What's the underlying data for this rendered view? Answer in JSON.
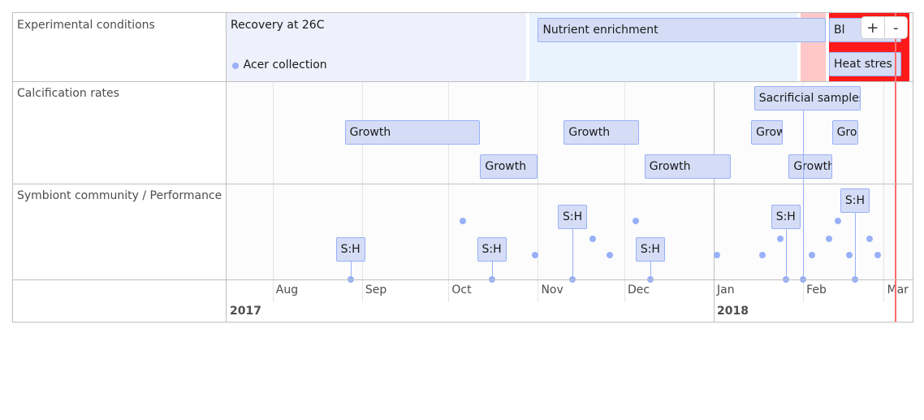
{
  "groups": [
    {
      "label": "Experimental conditions"
    },
    {
      "label": "Calcification rates"
    },
    {
      "label": "Symbiont community / Performance"
    }
  ],
  "backgrounds": [
    {
      "name": "recovery-period",
      "label": "Recovery at 26C",
      "start": "2017-07-16",
      "end": "2017-10-28",
      "color": "#eef0fb"
    },
    {
      "name": "nutrient-period",
      "start": "2017-10-29",
      "end": "2018-01-30",
      "color": "#e9f3fd"
    },
    {
      "name": "pre-stress-period",
      "start": "2018-01-31",
      "end": "2018-02-09",
      "color": "#ffc8c8"
    },
    {
      "name": "bleaching-period",
      "start": "2018-02-10",
      "end": "2018-03-10",
      "color": "#ff1a1a"
    }
  ],
  "items": [
    {
      "name": "acer-collection",
      "group": 0,
      "type": "point",
      "label": "Acer collection",
      "date": "2017-07-19",
      "row": 1
    },
    {
      "name": "nutrient-enrichment",
      "group": 0,
      "type": "range",
      "label": "Nutrient enrichment",
      "start": "2017-11-01",
      "end": "2018-02-09",
      "row": 0
    },
    {
      "name": "bleaching",
      "group": 0,
      "type": "range",
      "label": "Bleaching",
      "start": "2018-02-10",
      "end": "2018-03-07",
      "row": 0,
      "visible_label": "Bl"
    },
    {
      "name": "heat-stress",
      "group": 0,
      "type": "range",
      "label": "Heat stress",
      "start": "2018-02-10",
      "end": "2018-03-07",
      "row": 1,
      "visible_label": "Heat stres"
    },
    {
      "name": "sacrificial-samples",
      "group": 1,
      "type": "range",
      "label": "Sacrificial samples",
      "start": "2018-01-15",
      "end": "2018-02-21",
      "row": 0
    },
    {
      "name": "growth-1",
      "group": 1,
      "type": "range",
      "label": "Growth",
      "start": "2017-08-26",
      "end": "2017-10-12",
      "row": 1
    },
    {
      "name": "growth-2",
      "group": 1,
      "type": "range",
      "label": "Growth",
      "start": "2017-10-12",
      "end": "2017-11-01",
      "row": 2
    },
    {
      "name": "growth-3",
      "group": 1,
      "type": "range",
      "label": "Growth",
      "start": "2017-11-10",
      "end": "2017-12-06",
      "row": 1
    },
    {
      "name": "growth-4",
      "group": 1,
      "type": "range",
      "label": "Growth",
      "start": "2017-12-08",
      "end": "2018-01-07",
      "row": 2
    },
    {
      "name": "growth-5",
      "group": 1,
      "type": "range",
      "label": "Growth",
      "start": "2018-01-14",
      "end": "2018-01-25",
      "row": 1,
      "visible_label": "Grow"
    },
    {
      "name": "growth-6",
      "group": 1,
      "type": "range",
      "label": "Growth",
      "start": "2018-01-27",
      "end": "2018-02-11",
      "row": 2
    },
    {
      "name": "growth-7",
      "group": 1,
      "type": "range",
      "label": "Growth",
      "start": "2018-02-11",
      "end": "2018-02-20",
      "row": 1,
      "visible_label": "Gro"
    },
    {
      "name": "sh-sample-1",
      "group": 2,
      "type": "box",
      "label": "S:H",
      "date": "2017-08-28",
      "level": 0
    },
    {
      "name": "sh-sample-2",
      "group": 2,
      "type": "box",
      "label": "S:H",
      "date": "2017-10-16",
      "level": 0
    },
    {
      "name": "sh-sample-3",
      "group": 2,
      "type": "box",
      "label": "S:H",
      "date": "2017-11-13",
      "level": 1
    },
    {
      "name": "sh-sample-4",
      "group": 2,
      "type": "box",
      "label": "S:H",
      "date": "2017-12-10",
      "level": 0
    },
    {
      "name": "sh-sample-5",
      "group": 2,
      "type": "box",
      "label": "S:H",
      "date": "2018-01-26",
      "level": 1
    },
    {
      "name": "sh-sample-6",
      "group": 2,
      "type": "box",
      "label": "S:H",
      "date": "2018-02-19",
      "level": 2
    },
    {
      "name": "performance-point",
      "group": 2,
      "type": "dot",
      "date": "2017-10-06",
      "row": 0
    },
    {
      "name": "performance-point",
      "group": 2,
      "type": "dot",
      "date": "2017-10-31",
      "row": 2
    },
    {
      "name": "performance-point",
      "group": 2,
      "type": "dot",
      "date": "2017-11-20",
      "row": 1
    },
    {
      "name": "performance-point",
      "group": 2,
      "type": "dot",
      "date": "2017-11-26",
      "row": 2
    },
    {
      "name": "performance-point",
      "group": 2,
      "type": "dot",
      "date": "2017-12-05",
      "row": 0
    },
    {
      "name": "performance-point",
      "group": 2,
      "type": "dot",
      "date": "2018-01-02",
      "row": 2
    },
    {
      "name": "performance-point",
      "group": 2,
      "type": "dot",
      "date": "2018-01-18",
      "row": 2
    },
    {
      "name": "performance-point",
      "group": 2,
      "type": "dot",
      "date": "2018-01-24",
      "row": 1
    },
    {
      "name": "performance-point",
      "group": 2,
      "type": "dot",
      "date": "2018-02-04",
      "row": 2
    },
    {
      "name": "performance-point",
      "group": 2,
      "type": "dot",
      "date": "2018-02-10",
      "row": 1
    },
    {
      "name": "performance-point",
      "group": 2,
      "type": "dot",
      "date": "2018-02-13",
      "row": 0
    },
    {
      "name": "performance-point",
      "group": 2,
      "type": "dot",
      "date": "2018-02-17",
      "row": 2
    },
    {
      "name": "performance-point",
      "group": 2,
      "type": "dot",
      "date": "2018-02-24",
      "row": 1
    },
    {
      "name": "performance-point",
      "group": 2,
      "type": "dot",
      "date": "2018-02-27",
      "row": 2
    }
  ],
  "axis": {
    "minor_labels": [
      {
        "label": "Aug",
        "date": "2017-08-01"
      },
      {
        "label": "Sep",
        "date": "2017-09-01"
      },
      {
        "label": "Oct",
        "date": "2017-10-01"
      },
      {
        "label": "Nov",
        "date": "2017-11-01"
      },
      {
        "label": "Dec",
        "date": "2017-12-01"
      },
      {
        "label": "Jan",
        "date": "2018-01-01"
      },
      {
        "label": "Feb",
        "date": "2018-02-01"
      },
      {
        "label": "Mar",
        "date": "2018-03-01"
      }
    ],
    "major_labels": [
      {
        "label": "2017",
        "date": "2017-07-16"
      },
      {
        "label": "2018",
        "date": "2018-01-01"
      }
    ]
  },
  "current_time": "2018-03-05",
  "zoom": {
    "in_label": "+",
    "out_label": "-"
  }
}
